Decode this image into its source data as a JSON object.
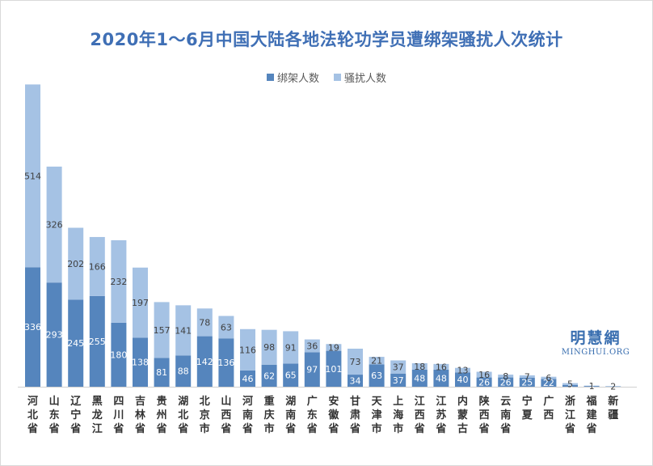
{
  "colors": {
    "kidnap": "#5585bd",
    "harass": "#a5c2e4",
    "title": "#3f6fb5"
  },
  "watermark": {
    "cn": "明慧網",
    "en": "MINGHUI.ORG"
  },
  "chart_data": {
    "type": "bar",
    "stacked": true,
    "title": "2020年1～6月中国大陆各地法轮功学员遭绑架骚扰人次统计",
    "legend_position": "top",
    "grid": false,
    "ylim": [
      0,
      860
    ],
    "categories": [
      "河北省",
      "山东省",
      "辽宁省",
      "黑龙江",
      "四川省",
      "吉林省",
      "贵州省",
      "湖北省",
      "北京市",
      "山西省",
      "河南省",
      "重庆市",
      "湖南省",
      "广东省",
      "安徽省",
      "甘肃省",
      "天津市",
      "上海市",
      "江西省",
      "江苏省",
      "内蒙古",
      "陕西省",
      "云南省",
      "宁夏",
      "广西",
      "浙江省",
      "福建省",
      "新疆"
    ],
    "series": [
      {
        "name": "绑架人数",
        "values": [
          336,
          293,
          245,
          255,
          180,
          138,
          81,
          88,
          142,
          136,
          46,
          62,
          65,
          97,
          101,
          34,
          63,
          37,
          48,
          48,
          40,
          26,
          26,
          25,
          22,
          5,
          2,
          0
        ]
      },
      {
        "name": "骚扰人数",
        "values": [
          514,
          326,
          202,
          166,
          232,
          197,
          157,
          141,
          78,
          63,
          116,
          98,
          91,
          36,
          19,
          73,
          21,
          37,
          18,
          16,
          13,
          16,
          8,
          7,
          6,
          5,
          1,
          2
        ]
      }
    ]
  }
}
